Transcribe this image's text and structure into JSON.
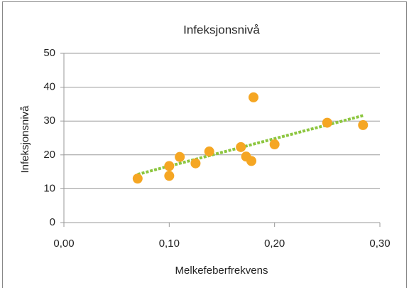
{
  "chart_data": {
    "type": "scatter",
    "title": "Infeksjonsnivå",
    "x_label": "Melkefeberfrekvens",
    "y_label": "Infeksjonsnivå",
    "x": [
      0.07,
      0.1,
      0.1,
      0.11,
      0.125,
      0.138,
      0.168,
      0.173,
      0.178,
      0.18,
      0.2,
      0.25,
      0.284
    ],
    "values": [
      13.0,
      16.7,
      13.8,
      19.4,
      17.5,
      21.0,
      22.3,
      19.5,
      18.2,
      37.0,
      23.1,
      29.5,
      28.8
    ],
    "color": "#f5a623",
    "trendline_color": "#8cc63f",
    "trendline": "linear",
    "xlim": [
      0,
      0.3
    ],
    "ylim": [
      0,
      50
    ],
    "xticks": [
      {
        "value": 0,
        "label": "0,00"
      },
      {
        "value": 0.1,
        "label": "0,10"
      },
      {
        "value": 0.2,
        "label": "0,20"
      },
      {
        "value": 0.3,
        "label": "0,30"
      }
    ],
    "yticks": [
      0,
      10,
      20,
      30,
      40,
      50
    ],
    "grid": true
  }
}
